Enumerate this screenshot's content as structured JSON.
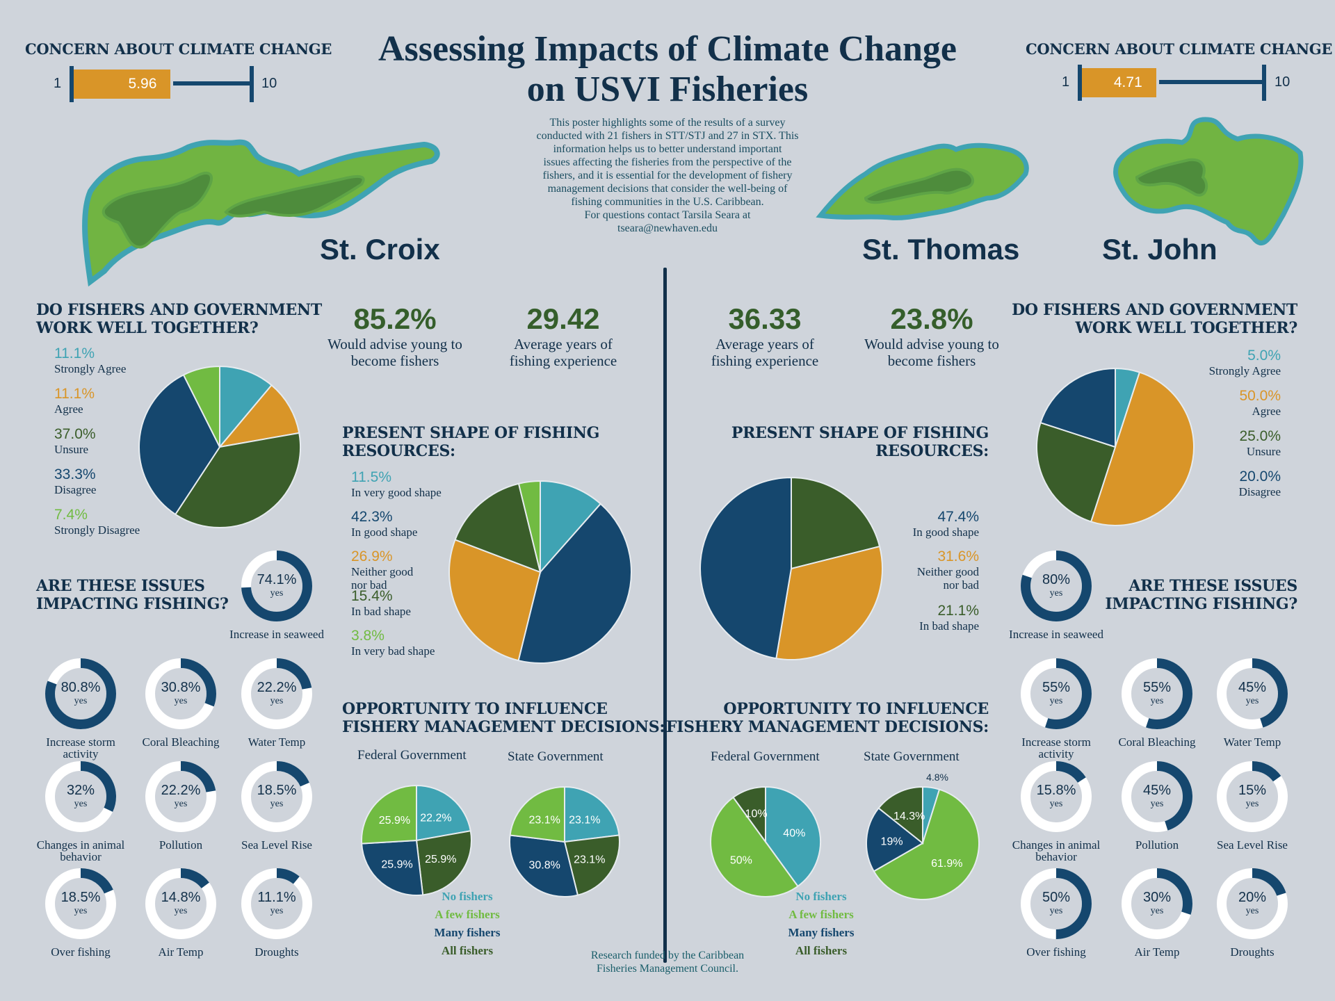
{
  "poster": {
    "title_line1": "Assessing Impacts of Climate Change",
    "title_line2": "on USVI Fisheries",
    "intro": [
      "This poster highlights some of the results of a survey",
      "conducted with 21 fishers in STT/STJ and 27 in STX. This",
      "information helps us to better understand important",
      "issues affecting the fisheries from the perspective of the",
      "fishers, and it is essential for the development of fishery",
      "management decisions that consider the well-being of",
      "fishing communities in the U.S. Caribbean.",
      "For questions contact Tarsila Seara at",
      "tseara@newhaven.edu"
    ],
    "footer_line1": "Research funded by the Caribbean",
    "footer_line2": "Fisheries Management Council."
  },
  "colors": {
    "teal": "#3fa3b3",
    "orange": "#d99528",
    "dark_green": "#3a5d2a",
    "navy": "#15476e",
    "light_green": "#71bb42",
    "background": "#cfd4db",
    "heading": "#12304a"
  },
  "left": {
    "island": "St. Croix",
    "concern": {
      "title": "CONCERN ABOUT CLIMATE CHANGE",
      "min": "1",
      "max": "10",
      "value": 5.96,
      "value_label": "5.96"
    },
    "stats": [
      {
        "value": "85.2%",
        "line1": "Would advise young to",
        "line2": "become fishers"
      },
      {
        "value": "29.42",
        "line1": "Average years of",
        "line2": "fishing experience"
      }
    ],
    "work_together": {
      "title_line1": "DO FISHERS AND GOVERNMENT",
      "title_line2": "WORK WELL TOGETHER?"
    },
    "present_shape": {
      "title_line1": "PRESENT SHAPE OF FISHING",
      "title_line2": "RESOURCES:"
    },
    "issues": {
      "title_line1": "ARE THESE ISSUES",
      "title_line2": "IMPACTING FISHING?",
      "yes": "yes",
      "items": [
        {
          "label": "Increase in seaweed",
          "pct_label": "74.1%",
          "value": 74.1
        },
        {
          "label": "Increase storm activity",
          "pct_label": "80.8%",
          "value": 80.8
        },
        {
          "label": "Coral Bleaching",
          "pct_label": "30.8%",
          "value": 30.8
        },
        {
          "label": "Water Temp",
          "pct_label": "22.2%",
          "value": 22.2
        },
        {
          "label": "Changes in animal behavior",
          "pct_label": "32%",
          "value": 32
        },
        {
          "label": "Pollution",
          "pct_label": "22.2%",
          "value": 22.2
        },
        {
          "label": "Sea Level Rise",
          "pct_label": "18.5%",
          "value": 18.5
        },
        {
          "label": "Over fishing",
          "pct_label": "18.5%",
          "value": 18.5
        },
        {
          "label": "Air Temp",
          "pct_label": "14.8%",
          "value": 14.8
        },
        {
          "label": "Droughts",
          "pct_label": "11.1%",
          "value": 11.1
        }
      ]
    },
    "influence": {
      "title_line1": "OPPORTUNITY TO INFLUENCE",
      "title_line2": "FISHERY MANAGEMENT DECISIONS:",
      "federal_label": "Federal Government",
      "state_label": "State Government"
    }
  },
  "right": {
    "islands": [
      "St. Thomas",
      "St. John"
    ],
    "concern": {
      "title": "CONCERN ABOUT CLIMATE CHANGE",
      "min": "1",
      "max": "10",
      "value": 4.71,
      "value_label": "4.71"
    },
    "stats": [
      {
        "value": "36.33",
        "line1": "Average years of",
        "line2": "fishing experience"
      },
      {
        "value": "23.8%",
        "line1": "Would advise young to",
        "line2": "become fishers"
      }
    ],
    "work_together": {
      "title_line1": "DO FISHERS AND GOVERNMENT",
      "title_line2": "WORK WELL TOGETHER?"
    },
    "present_shape": {
      "title_line1": "PRESENT SHAPE OF FISHING",
      "title_line2": "RESOURCES:"
    },
    "issues": {
      "title_line1": "ARE THESE ISSUES",
      "title_line2": "IMPACTING FISHING?",
      "yes": "yes",
      "items": [
        {
          "label": "Increase in seaweed",
          "pct_label": "80%",
          "value": 80
        },
        {
          "label": "Increase storm activity",
          "pct_label": "55%",
          "value": 55
        },
        {
          "label": "Coral Bleaching",
          "pct_label": "55%",
          "value": 55
        },
        {
          "label": "Water Temp",
          "pct_label": "45%",
          "value": 45
        },
        {
          "label": "Changes in animal behavior",
          "pct_label": "15.8%",
          "value": 15.8
        },
        {
          "label": "Pollution",
          "pct_label": "45%",
          "value": 45
        },
        {
          "label": "Sea Level Rise",
          "pct_label": "15%",
          "value": 15
        },
        {
          "label": "Over fishing",
          "pct_label": "50%",
          "value": 50
        },
        {
          "label": "Air Temp",
          "pct_label": "30%",
          "value": 30
        },
        {
          "label": "Droughts",
          "pct_label": "20%",
          "value": 20
        }
      ]
    },
    "influence": {
      "title_line1": "OPPORTUNITY TO INFLUENCE",
      "title_line2": "FISHERY MANAGEMENT DECISIONS:",
      "federal_label": "Federal Government",
      "state_label": "State Government"
    }
  },
  "influence_legend": [
    {
      "label": "No fishers",
      "color": "#3fa3b3"
    },
    {
      "label": "A few fishers",
      "color": "#71bb42"
    },
    {
      "label": "Many fishers",
      "color": "#15476e"
    },
    {
      "label": "All fishers",
      "color": "#3a5d2a"
    }
  ],
  "chart_data": [
    {
      "id": "stx_work_together",
      "type": "pie",
      "title": "DO FISHERS AND GOVERNMENT WORK WELL TOGETHER? (St. Croix)",
      "categories": [
        "Strongly Agree",
        "Agree",
        "Unsure",
        "Disagree",
        "Strongly Disagree"
      ],
      "values": [
        11.1,
        11.1,
        37.0,
        33.3,
        7.4
      ],
      "labels": [
        "11.1%",
        "11.1%",
        "37.0%",
        "33.3%",
        "7.4%"
      ],
      "colors": [
        "#3fa3b3",
        "#d99528",
        "#3a5d2a",
        "#15476e",
        "#71bb42"
      ],
      "legend": "left"
    },
    {
      "id": "stx_present_shape",
      "type": "pie",
      "title": "PRESENT SHAPE OF FISHING RESOURCES (St. Croix)",
      "categories": [
        "In very good shape",
        "In good shape",
        "Neither good nor bad",
        "In bad shape",
        "In very bad shape"
      ],
      "values": [
        11.5,
        42.3,
        26.9,
        15.4,
        3.8
      ],
      "labels": [
        "11.5%",
        "42.3%",
        "26.9%",
        "15.4%",
        "3.8%"
      ],
      "colors": [
        "#3fa3b3",
        "#15476e",
        "#d99528",
        "#3a5d2a",
        "#71bb42"
      ],
      "legend": "left"
    },
    {
      "id": "stx_federal",
      "type": "pie",
      "title": "Federal Government (St. Croix)",
      "categories": [
        "No fishers",
        "All fishers",
        "Many fishers",
        "A few fishers"
      ],
      "values": [
        22.2,
        25.9,
        25.9,
        25.9
      ],
      "labels": [
        "22.2%",
        "25.9%",
        "25.9%",
        "25.9%"
      ],
      "colors": [
        "#3fa3b3",
        "#3a5d2a",
        "#15476e",
        "#71bb42"
      ]
    },
    {
      "id": "stx_state",
      "type": "pie",
      "title": "State Government (St. Croix)",
      "categories": [
        "No fishers",
        "All fishers",
        "Many fishers",
        "A few fishers"
      ],
      "values": [
        23.1,
        23.1,
        30.8,
        23.1
      ],
      "labels": [
        "23.1%",
        "23.1%",
        "30.8%",
        "23.1%"
      ],
      "colors": [
        "#3fa3b3",
        "#3a5d2a",
        "#15476e",
        "#71bb42"
      ]
    },
    {
      "id": "stt_work_together",
      "type": "pie",
      "title": "DO FISHERS AND GOVERNMENT WORK WELL TOGETHER? (St. Thomas / St. John)",
      "categories": [
        "Strongly Agree",
        "Agree",
        "Unsure",
        "Disagree"
      ],
      "values": [
        5.0,
        50.0,
        25.0,
        20.0
      ],
      "labels": [
        "5.0%",
        "50.0%",
        "25.0%",
        "20.0%"
      ],
      "colors": [
        "#3fa3b3",
        "#d99528",
        "#3a5d2a",
        "#15476e"
      ],
      "legend": "right"
    },
    {
      "id": "stt_present_shape",
      "type": "pie",
      "title": "PRESENT SHAPE OF FISHING RESOURCES (St. Thomas / St. John)",
      "categories": [
        "In bad shape",
        "Neither good nor bad",
        "In good shape"
      ],
      "values": [
        21.1,
        31.6,
        47.4
      ],
      "labels": [
        "21.1%",
        "31.6%",
        "47.4%"
      ],
      "colors": [
        "#3a5d2a",
        "#d99528",
        "#15476e"
      ],
      "legend": "right"
    },
    {
      "id": "stt_federal",
      "type": "pie",
      "title": "Federal Government (St. Thomas / St. John)",
      "categories": [
        "No fishers",
        "A few fishers",
        "All fishers"
      ],
      "values": [
        40,
        50,
        10
      ],
      "labels": [
        "40%",
        "50%",
        "10%"
      ],
      "colors": [
        "#3fa3b3",
        "#71bb42",
        "#3a5d2a"
      ]
    },
    {
      "id": "stt_state",
      "type": "pie",
      "title": "State Government (St. Thomas / St. John)",
      "categories": [
        "No fishers",
        "A few fishers",
        "Many fishers",
        "All fishers"
      ],
      "values": [
        4.8,
        61.9,
        19,
        14.3
      ],
      "labels": [
        "4.8%",
        "61.9%",
        "19%",
        "14.3%"
      ],
      "colors": [
        "#3fa3b3",
        "#71bb42",
        "#15476e",
        "#3a5d2a"
      ]
    },
    {
      "id": "stx_concern",
      "type": "bar",
      "title": "CONCERN ABOUT CLIMATE CHANGE (St. Croix)",
      "values": [
        5.96
      ],
      "xlim": [
        1,
        10
      ]
    },
    {
      "id": "stt_concern",
      "type": "bar",
      "title": "CONCERN ABOUT CLIMATE CHANGE (St. Thomas / St. John)",
      "values": [
        4.71
      ],
      "xlim": [
        1,
        10
      ]
    }
  ]
}
